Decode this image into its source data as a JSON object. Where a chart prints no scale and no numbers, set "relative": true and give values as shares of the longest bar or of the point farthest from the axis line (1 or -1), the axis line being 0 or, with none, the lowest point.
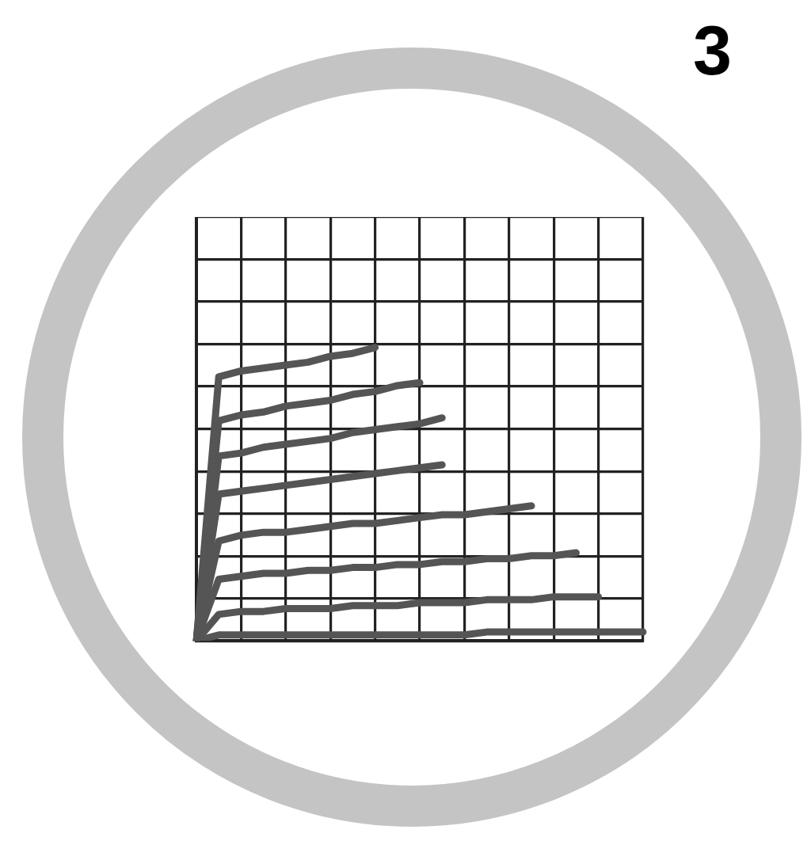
{
  "chart_data": {
    "type": "line",
    "relative": true,
    "grid": true,
    "marker": "none",
    "line_style": "solid",
    "legend": false,
    "annotations": [
      "3"
    ],
    "categories": [
      null,
      null,
      null,
      null,
      null,
      null,
      null,
      null,
      null,
      null,
      null,
      null,
      null,
      null,
      null,
      null,
      null,
      null,
      null,
      null,
      null
    ],
    "series": [
      {
        "color": "#555555",
        "values": [
          0,
          0.9,
          0.92,
          0.93,
          0.94,
          0.95,
          0.97,
          0.98,
          1.0,
          null,
          null,
          null,
          null,
          null,
          null,
          null,
          null,
          null,
          null,
          null,
          null
        ]
      },
      {
        "color": "#555555",
        "values": [
          0,
          0.75,
          0.77,
          0.78,
          0.8,
          0.81,
          0.82,
          0.84,
          0.85,
          0.87,
          0.88,
          null,
          null,
          null,
          null,
          null,
          null,
          null,
          null,
          null,
          null
        ]
      },
      {
        "color": "#555555",
        "values": [
          0,
          0.63,
          0.64,
          0.66,
          0.67,
          0.68,
          0.69,
          0.71,
          0.72,
          0.73,
          0.74,
          0.76,
          null,
          null,
          null,
          null,
          null,
          null,
          null,
          null,
          null
        ]
      },
      {
        "color": "#555555",
        "values": [
          0,
          0.5,
          0.51,
          0.52,
          0.53,
          0.54,
          0.55,
          0.56,
          0.57,
          0.58,
          0.59,
          0.6,
          null,
          null,
          null,
          null,
          null,
          null,
          null,
          null,
          null
        ]
      },
      {
        "color": "#555555",
        "values": [
          0,
          0.34,
          0.36,
          0.37,
          0.37,
          0.38,
          0.39,
          0.4,
          0.4,
          0.41,
          0.42,
          0.43,
          0.43,
          0.44,
          0.45,
          0.46,
          null,
          null,
          null,
          null,
          null
        ]
      },
      {
        "color": "#555555",
        "values": [
          0,
          0.21,
          0.22,
          0.23,
          0.23,
          0.24,
          0.24,
          0.25,
          0.25,
          0.26,
          0.26,
          0.27,
          0.27,
          0.28,
          0.28,
          0.29,
          0.29,
          0.3,
          null,
          null,
          null
        ]
      },
      {
        "color": "#555555",
        "values": [
          0,
          0.09,
          0.1,
          0.1,
          0.11,
          0.11,
          0.11,
          0.12,
          0.12,
          0.12,
          0.13,
          0.13,
          0.13,
          0.14,
          0.14,
          0.14,
          0.15,
          0.15,
          0.15,
          null,
          null
        ]
      },
      {
        "color": "#555555",
        "values": [
          0,
          0.02,
          0.02,
          0.02,
          0.02,
          0.02,
          0.02,
          0.02,
          0.02,
          0.02,
          0.02,
          0.02,
          0.02,
          0.03,
          0.03,
          0.03,
          0.03,
          0.03,
          0.03,
          0.03,
          0.03
        ]
      }
    ]
  }
}
